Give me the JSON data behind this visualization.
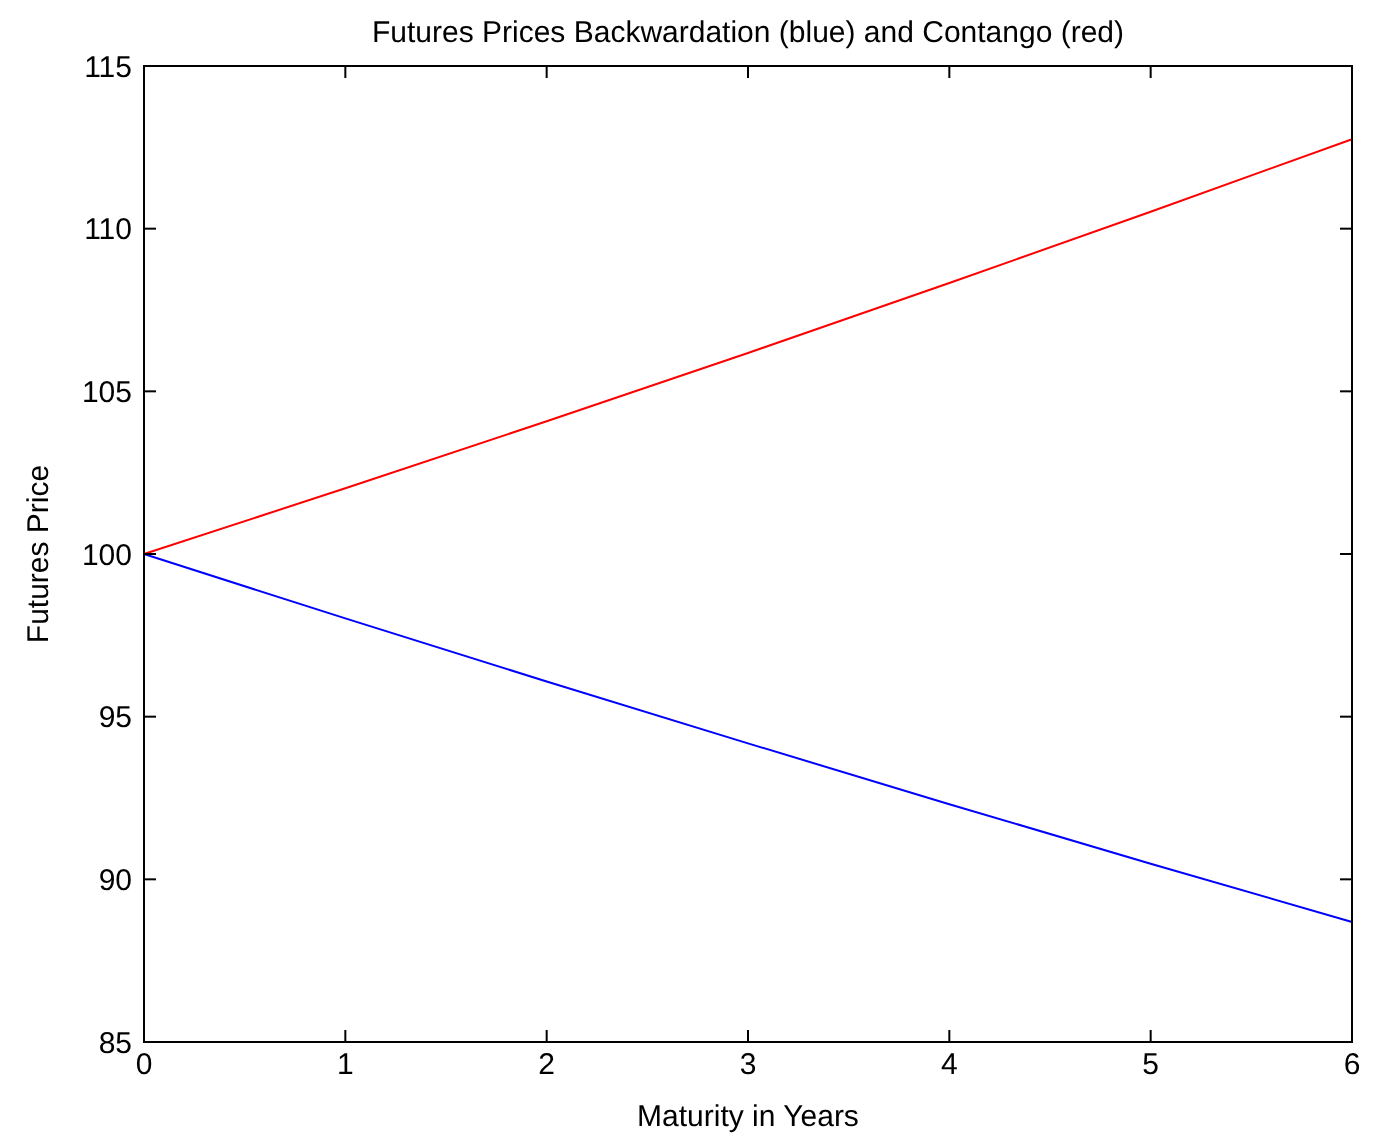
{
  "chart_data": {
    "type": "line",
    "title": "Futures Prices Backwardation (blue) and Contango (red)",
    "xlabel": "Maturity in Years",
    "ylabel": "Futures Price",
    "x": [
      0,
      1,
      2,
      3,
      4,
      5,
      6
    ],
    "series": [
      {
        "color": "#0000ff",
        "values": [
          100,
          98.02,
          96.08,
          94.18,
          92.31,
          90.48,
          88.69
        ]
      },
      {
        "color": "#ff0000",
        "values": [
          100,
          102.02,
          104.08,
          106.18,
          108.33,
          110.52,
          112.75
        ]
      }
    ],
    "xlim": [
      0,
      6
    ],
    "xticks": [
      0,
      1,
      2,
      3,
      4,
      5,
      6
    ],
    "ylim": [
      85,
      115
    ],
    "yticks": [
      85,
      90,
      95,
      100,
      105,
      110,
      115
    ],
    "grid": false,
    "marker": "none",
    "line_style": "solid"
  }
}
